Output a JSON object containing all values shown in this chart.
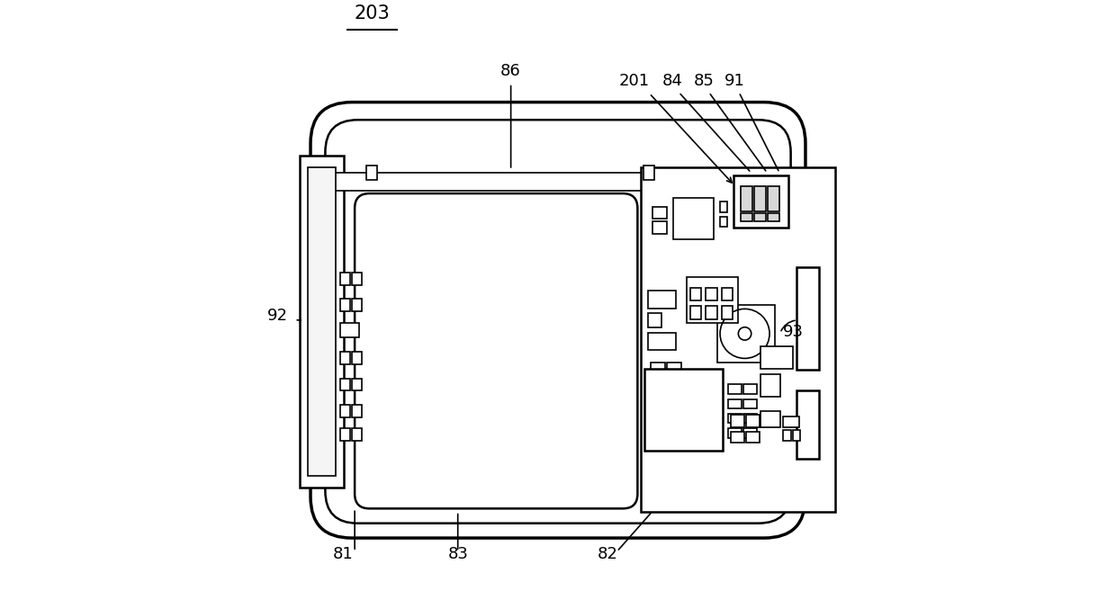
{
  "bg_color": "#ffffff",
  "line_color": "#000000",
  "figsize": [
    12.4,
    6.57
  ],
  "dpi": 100,
  "label_fs": 13,
  "label_fs_big": 15
}
